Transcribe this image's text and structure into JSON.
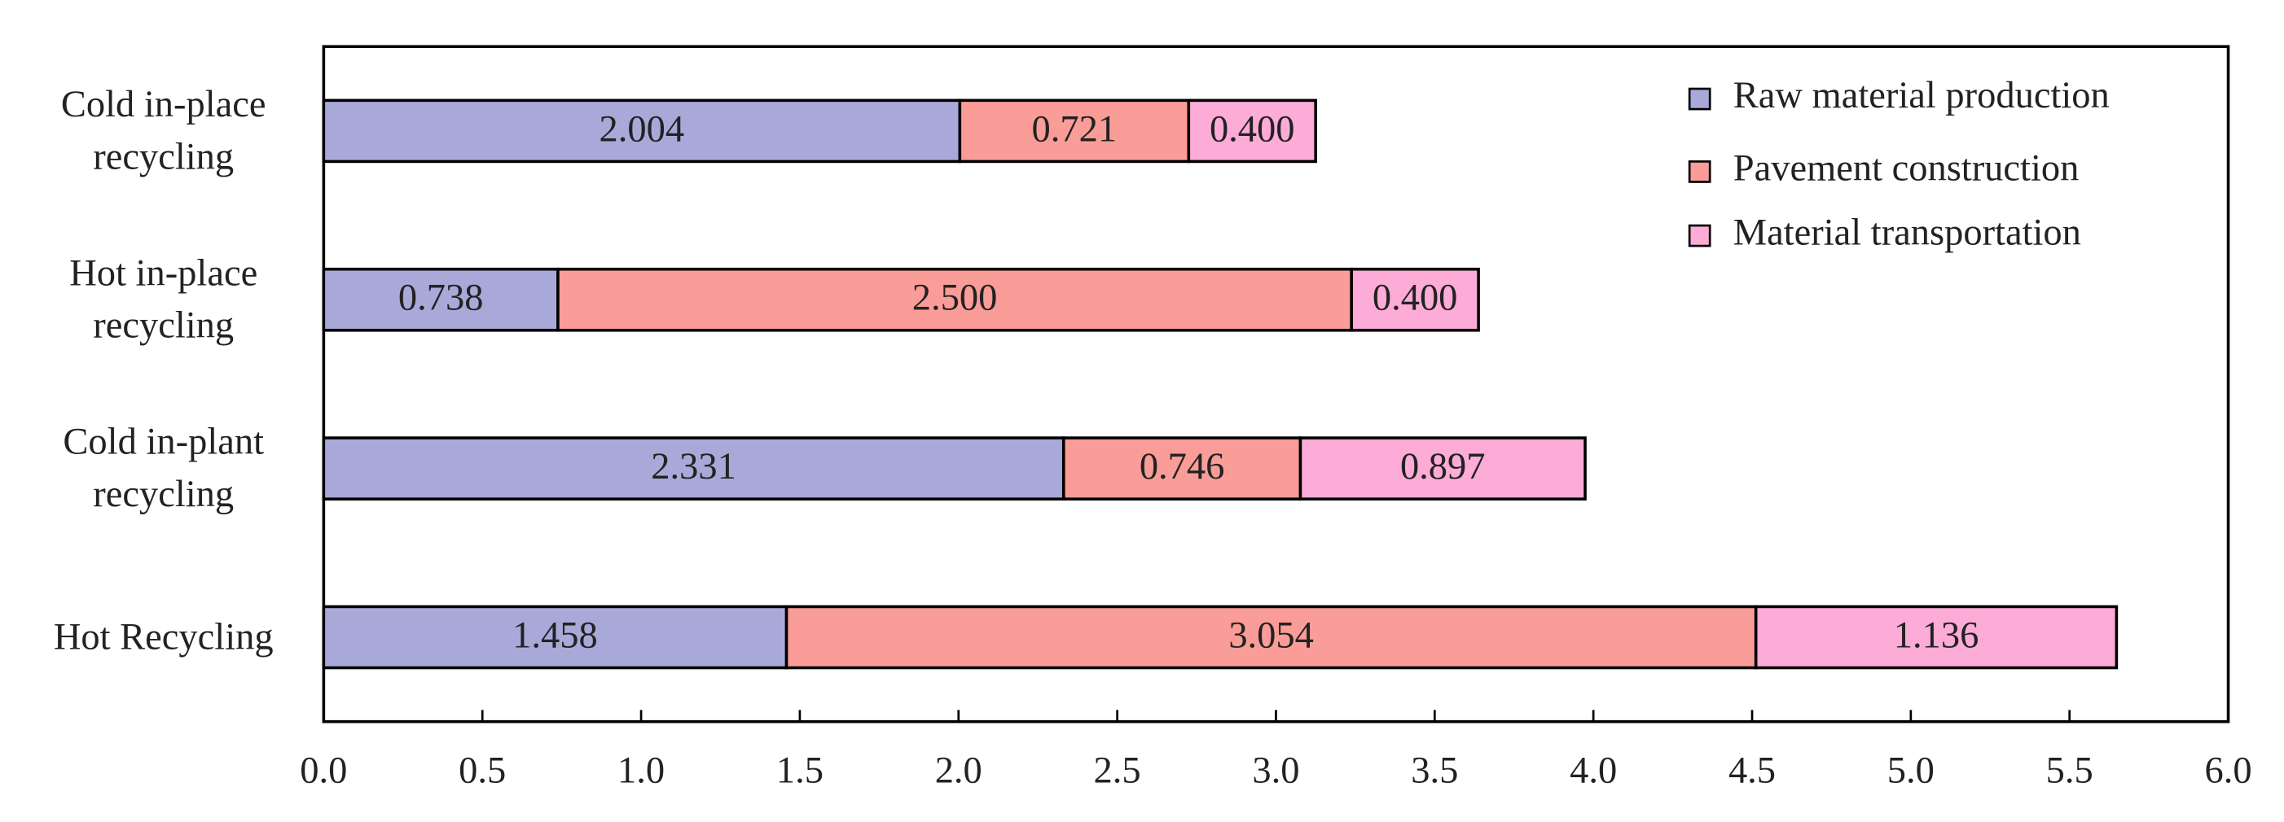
{
  "chart_data": {
    "type": "stacked-barh",
    "categories": [
      "Cold in-place recycling",
      "Hot in-place recycling",
      "Cold in-plant recycling",
      "Hot Recycling"
    ],
    "series": [
      {
        "name": "Raw material production",
        "color": "#a9a9d9",
        "values": [
          2.004,
          0.738,
          2.331,
          1.458
        ],
        "value_labels": [
          "2.004",
          "0.738",
          "2.331",
          "1.458"
        ]
      },
      {
        "name": "Pavement construction",
        "color": "#fa9c97",
        "values": [
          0.721,
          2.5,
          0.746,
          3.054
        ],
        "value_labels": [
          "0.721",
          "2.500",
          "0.746",
          "3.054"
        ]
      },
      {
        "name": "Material transportation",
        "color": "#fdabd7",
        "values": [
          0.4,
          0.4,
          0.897,
          1.136
        ],
        "value_labels": [
          "0.400",
          "0.400",
          "0.897",
          "1.136"
        ]
      }
    ],
    "xlim": [
      0,
      6
    ],
    "xticks": [
      {
        "value": 0,
        "label": "0.0"
      },
      {
        "value": 0.5,
        "label": "0.5"
      },
      {
        "value": 1,
        "label": "1.0"
      },
      {
        "value": 1.5,
        "label": "1.5"
      },
      {
        "value": 2,
        "label": "2.0"
      },
      {
        "value": 2.5,
        "label": "2.5"
      },
      {
        "value": 3,
        "label": "3.0"
      },
      {
        "value": 3.5,
        "label": "3.5"
      },
      {
        "value": 4,
        "label": "4.0"
      },
      {
        "value": 4.5,
        "label": "4.5"
      },
      {
        "value": 5,
        "label": "5.0"
      },
      {
        "value": 5.5,
        "label": "5.5"
      },
      {
        "value": 6,
        "label": "6.0"
      }
    ],
    "legend": "top-right"
  }
}
